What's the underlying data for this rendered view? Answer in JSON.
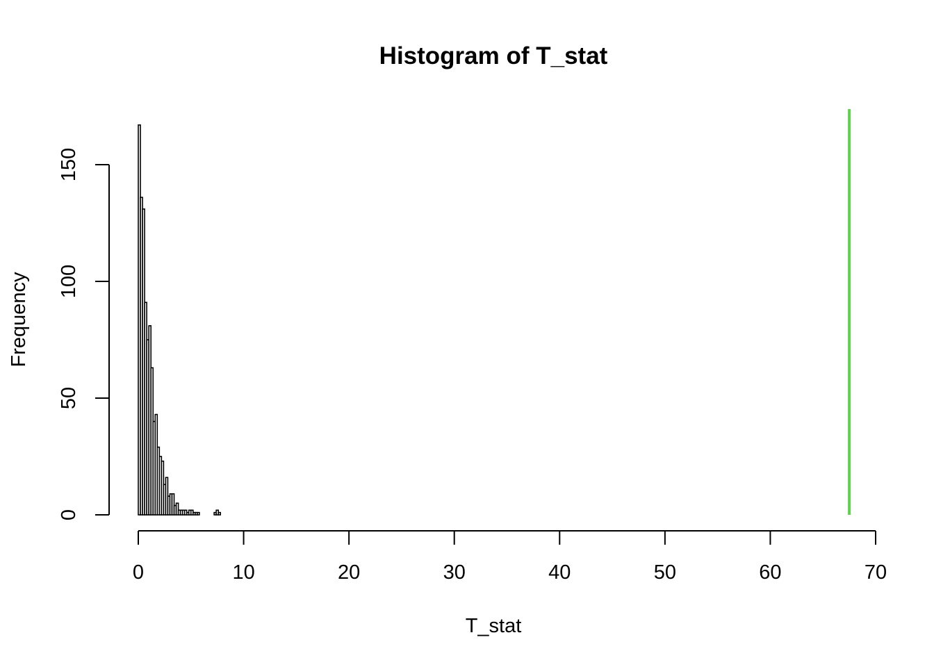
{
  "chart_data": {
    "type": "bar",
    "title": "Histogram of T_stat",
    "xlabel": "T_stat",
    "ylabel": "Frequency",
    "bin_width": 0.2,
    "bins_start": 0,
    "values": [
      167,
      136,
      131,
      91,
      75,
      81,
      63,
      40,
      43,
      29,
      25,
      23,
      13,
      16,
      8,
      9,
      9,
      4,
      5,
      2,
      2,
      2,
      2,
      1,
      2,
      2,
      1,
      1,
      1,
      0,
      0,
      0,
      0,
      0,
      0,
      0,
      1,
      2,
      1
    ],
    "xlim": [
      0,
      70
    ],
    "ylim": [
      0,
      175
    ],
    "x_ticks": [
      0,
      10,
      20,
      30,
      40,
      50,
      60,
      70
    ],
    "y_ticks": [
      0,
      50,
      100,
      150
    ],
    "reference_line": {
      "x": 67.5,
      "color": "#61d04f"
    },
    "bar_fill": "#ffffff",
    "bar_stroke": "#000000",
    "grid": false
  }
}
